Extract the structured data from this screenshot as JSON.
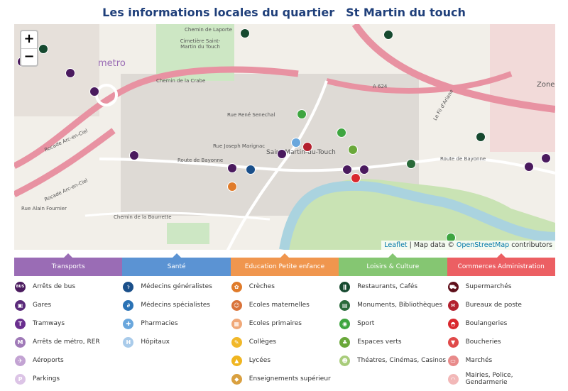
{
  "header": {
    "title": "Les informations locales du quartier",
    "place": "St Martin du touch"
  },
  "map": {
    "zoom_in": "+",
    "zoom_out": "−",
    "attribution": {
      "leaflet": "Leaflet",
      "sep": " | Map data © ",
      "osm": "OpenStreetMap",
      "contrib": " contributors"
    },
    "labels": {
      "metro": "metro",
      "rocade1": "Rocade Arc-en-Ciel",
      "rocade2": "Rocade Arc-en-Ciel",
      "a624": "A 624",
      "bayonne1": "Route de Bayonne",
      "bayonne2": "Route de Bayonne",
      "bourrette": "Chemin de la Bourrette",
      "senechal": "Rue René Senechal",
      "marignac": "Rue Joseph Marignac",
      "laporte": "Chemin de Laporte",
      "alain": "Rue Alain Fournier",
      "crabe": "Chemin de la Crabe",
      "town": "Saint-Martin-du-Touch",
      "zone": "Zone",
      "cimetiere": "Cimetière Saint-Martin du Touch",
      "fil": "Le Fil d'Ariane"
    }
  },
  "legend": [
    {
      "title": "Transports",
      "color": "#9a6cb5",
      "items": [
        {
          "label": "Arrêts de bus",
          "icon": "bus-icon",
          "glyph": "BUS",
          "color": "#4a1a5e"
        },
        {
          "label": "Gares",
          "icon": "train-icon",
          "glyph": "▣",
          "color": "#5a2a7a"
        },
        {
          "label": "Tramways",
          "icon": "tram-icon",
          "glyph": "T",
          "color": "#6a2f8f"
        },
        {
          "label": "Arrêts de métro, RER",
          "icon": "metro-icon",
          "glyph": "M",
          "color": "#a07ab8"
        },
        {
          "label": "Aéroports",
          "icon": "airplane-icon",
          "glyph": "✈",
          "color": "#c3a3d3"
        },
        {
          "label": "Parkings",
          "icon": "parking-icon",
          "glyph": "P",
          "color": "#dcc4e6"
        }
      ]
    },
    {
      "title": "Santé",
      "color": "#5b93d3",
      "items": [
        {
          "label": "Médecins généralistes",
          "icon": "doctor-icon",
          "glyph": "⚕",
          "color": "#1a4f8a"
        },
        {
          "label": "Médecins spécialistes",
          "icon": "stethoscope-icon",
          "glyph": "∂",
          "color": "#2a72b5"
        },
        {
          "label": "Pharmacies",
          "icon": "pharmacy-cross-icon",
          "glyph": "✚",
          "color": "#6aa7dd"
        },
        {
          "label": "Hôpitaux",
          "icon": "hospital-icon",
          "glyph": "H",
          "color": "#a9cbea"
        }
      ]
    },
    {
      "title": "Education Petite enfance",
      "color": "#f0964e",
      "items": [
        {
          "label": "Crèches",
          "icon": "stroller-icon",
          "glyph": "✿",
          "color": "#e07b2a"
        },
        {
          "label": "Ecoles maternelles",
          "icon": "kindergarten-icon",
          "glyph": "☺",
          "color": "#d9733a"
        },
        {
          "label": "Ecoles primaires",
          "icon": "primary-school-icon",
          "glyph": "▦",
          "color": "#f0a878"
        },
        {
          "label": "Collèges",
          "icon": "college-icon",
          "glyph": "✎",
          "color": "#f1b82a"
        },
        {
          "label": "Lycées",
          "icon": "high-school-icon",
          "glyph": "▲",
          "color": "#f0b520"
        },
        {
          "label": "Enseignements supérieur",
          "icon": "graduation-cap-icon",
          "glyph": "◆",
          "color": "#d9a040"
        }
      ]
    },
    {
      "title": "Loisirs & Culture",
      "color": "#85c672",
      "items": [
        {
          "label": "Restaurants, Cafés",
          "icon": "restaurant-icon",
          "glyph": "ǁ",
          "color": "#16492f"
        },
        {
          "label": "Monuments, Bibliothèques",
          "icon": "monument-icon",
          "glyph": "▤",
          "color": "#2a6a3a"
        },
        {
          "label": "Sport",
          "icon": "sport-icon",
          "glyph": "◉",
          "color": "#3ea540"
        },
        {
          "label": "Espaces verts",
          "icon": "tree-icon",
          "glyph": "♣",
          "color": "#6aa83a"
        },
        {
          "label": "Théatres, Cinémas, Casinos",
          "icon": "theatre-mask-icon",
          "glyph": "☻",
          "color": "#a8cc7a"
        }
      ]
    },
    {
      "title": "Commerces Administration",
      "color": "#ec5f63",
      "items": [
        {
          "label": "Supermarchés",
          "icon": "cart-icon",
          "glyph": "⛟",
          "color": "#5e0f1a"
        },
        {
          "label": "Bureaux de poste",
          "icon": "post-icon",
          "glyph": "✉",
          "color": "#b3202e"
        },
        {
          "label": "Boulangeries",
          "icon": "bread-icon",
          "glyph": "◓",
          "color": "#d9282e"
        },
        {
          "label": "Boucheries",
          "icon": "butcher-icon",
          "glyph": "▼",
          "color": "#e04a4a"
        },
        {
          "label": "Marchés",
          "icon": "market-basket-icon",
          "glyph": "▭",
          "color": "#e88a8a"
        },
        {
          "label": "Mairies, Police, Gendarmerie",
          "icon": "town-hall-icon",
          "glyph": "◠",
          "color": "#f2b8b8"
        }
      ]
    }
  ]
}
